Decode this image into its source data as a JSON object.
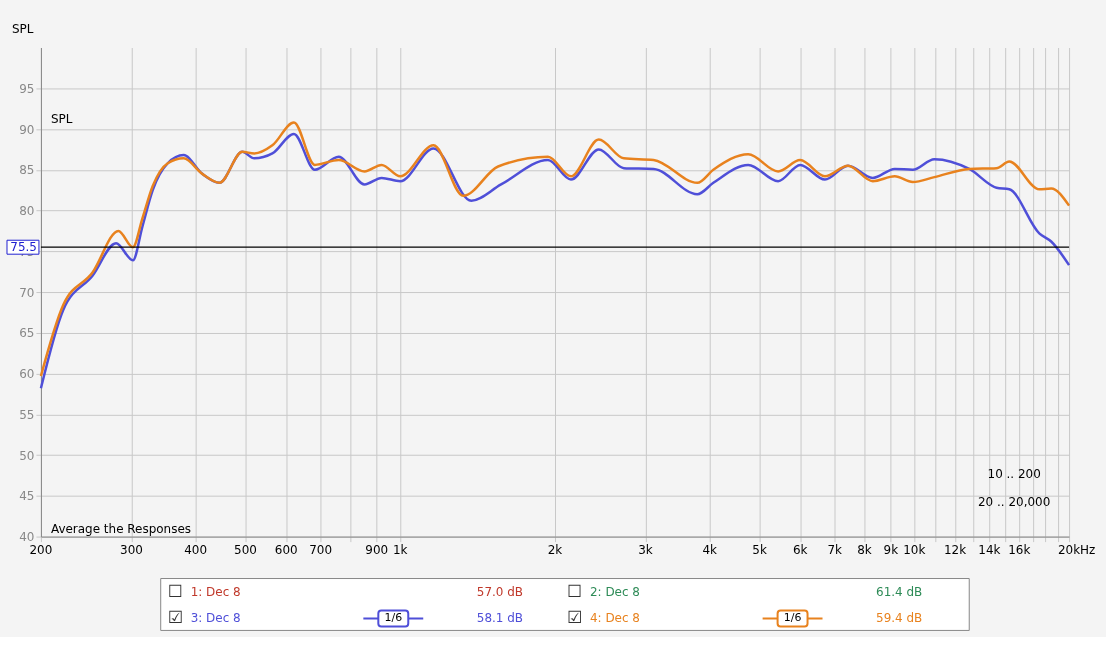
{
  "chart_data": {
    "type": "line",
    "ylabel": "SPL",
    "xlim": [
      200,
      20000
    ],
    "ylim": [
      40,
      100
    ],
    "xticks": [
      {
        "value": 200,
        "label": "200"
      },
      300,
      400,
      500,
      600,
      700,
      {
        "value": 800,
        "label": null
      },
      900,
      {
        "value": 1000,
        "label": "1k"
      },
      {
        "value": 2000,
        "label": "2k"
      },
      {
        "value": 3000,
        "label": "3k"
      },
      {
        "value": 4000,
        "label": "4k"
      },
      {
        "value": 5000,
        "label": "5k"
      },
      {
        "value": 6000,
        "label": "6k"
      },
      {
        "value": 7000,
        "label": "7k"
      },
      {
        "value": 8000,
        "label": "8k"
      },
      {
        "value": 9000,
        "label": "9k"
      },
      {
        "value": 10000,
        "label": "10k"
      },
      {
        "value": 11000,
        "label": null
      },
      {
        "value": 12000,
        "label": "12k"
      },
      {
        "value": 13000,
        "label": null
      },
      {
        "value": 14000,
        "label": "14k"
      },
      {
        "value": 15000,
        "label": null
      },
      {
        "value": 16000,
        "label": "16k"
      },
      {
        "value": 17000,
        "label": null
      },
      {
        "value": 18000,
        "label": null
      },
      {
        "value": 19000,
        "label": null
      },
      {
        "value": 20000,
        "label": "20k"
      }
    ],
    "xlabel": "Hz",
    "yticks": [
      40,
      45,
      50,
      55,
      60,
      65,
      70,
      75,
      80,
      85,
      90,
      95
    ],
    "grid": true,
    "log": "x",
    "legend": "bottom",
    "line_style": "solid",
    "marker": "none",
    "ref_lines": [
      {
        "axis": "y",
        "value": 75.5,
        "label": "75.5",
        "color": "#000000"
      }
    ],
    "series": [
      {
        "name": "3: Dec 8",
        "color": "#4f4fd8",
        "x": [
          200,
          221,
          252,
          280,
          302,
          315,
          330,
          353,
          379,
          412,
          445,
          493,
          520,
          564,
          621,
          682,
          759,
          852,
          920,
          1000,
          1161,
          1375,
          1571,
          1938,
          2148,
          2433,
          2722,
          3110,
          3784,
          4065,
          4752,
          5434,
          5998,
          6700,
          7430,
          8300,
          9160,
          9930,
          10940,
          12790,
          14450,
          15300,
          17500,
          18460,
          20000
        ],
        "values": [
          58.2,
          67.8,
          72,
          76,
          73.9,
          78,
          82.5,
          85.8,
          86.8,
          84.5,
          83.4,
          87.2,
          86.4,
          87,
          89.4,
          85,
          86.6,
          83.2,
          84,
          83.6,
          87.6,
          81.2,
          83.2,
          86.2,
          83.8,
          87.5,
          85.2,
          85.1,
          82,
          83.4,
          85.6,
          83.6,
          85.6,
          83.8,
          85.5,
          84,
          85.1,
          85,
          86.3,
          85.1,
          82.8,
          82.6,
          77.2,
          76.2,
          73.3
        ]
      },
      {
        "name": "4: Dec 8",
        "color": "#e8821e",
        "x": [
          200,
          221,
          252,
          283,
          302,
          315,
          330,
          353,
          379,
          412,
          445,
          493,
          520,
          564,
          621,
          682,
          759,
          852,
          920,
          1000,
          1161,
          1326,
          1550,
          1938,
          2148,
          2433,
          2722,
          3110,
          3784,
          4065,
          4752,
          5434,
          5998,
          6700,
          7430,
          8300,
          9160,
          9930,
          10940,
          12790,
          14450,
          15300,
          17500,
          18460,
          20000
        ],
        "values": [
          59.7,
          68.4,
          72.4,
          77.5,
          75.5,
          79,
          83,
          85.8,
          86.4,
          84.5,
          83.4,
          87.2,
          87,
          88,
          90.8,
          85.6,
          86.2,
          84.8,
          85.6,
          84.2,
          88,
          81.8,
          85.4,
          86.6,
          84.2,
          88.7,
          86.4,
          86.2,
          83.4,
          85,
          86.9,
          84.8,
          86.2,
          84.2,
          85.5,
          83.6,
          84.2,
          83.5,
          84.1,
          85.1,
          85.2,
          86,
          82.6,
          82.7,
          80.6
        ]
      }
    ],
    "annotations": [
      "SPL",
      "Average the Responses",
      "10 .. 200",
      "20 .. 20,000",
      "1: Dec 8",
      "57.0 dB",
      "2: Dec 8",
      "61.4 dB",
      "1/6",
      "58.1 dB",
      "1/6",
      "59.4 dB",
      "☐",
      "☐",
      "☑",
      "☑"
    ]
  }
}
